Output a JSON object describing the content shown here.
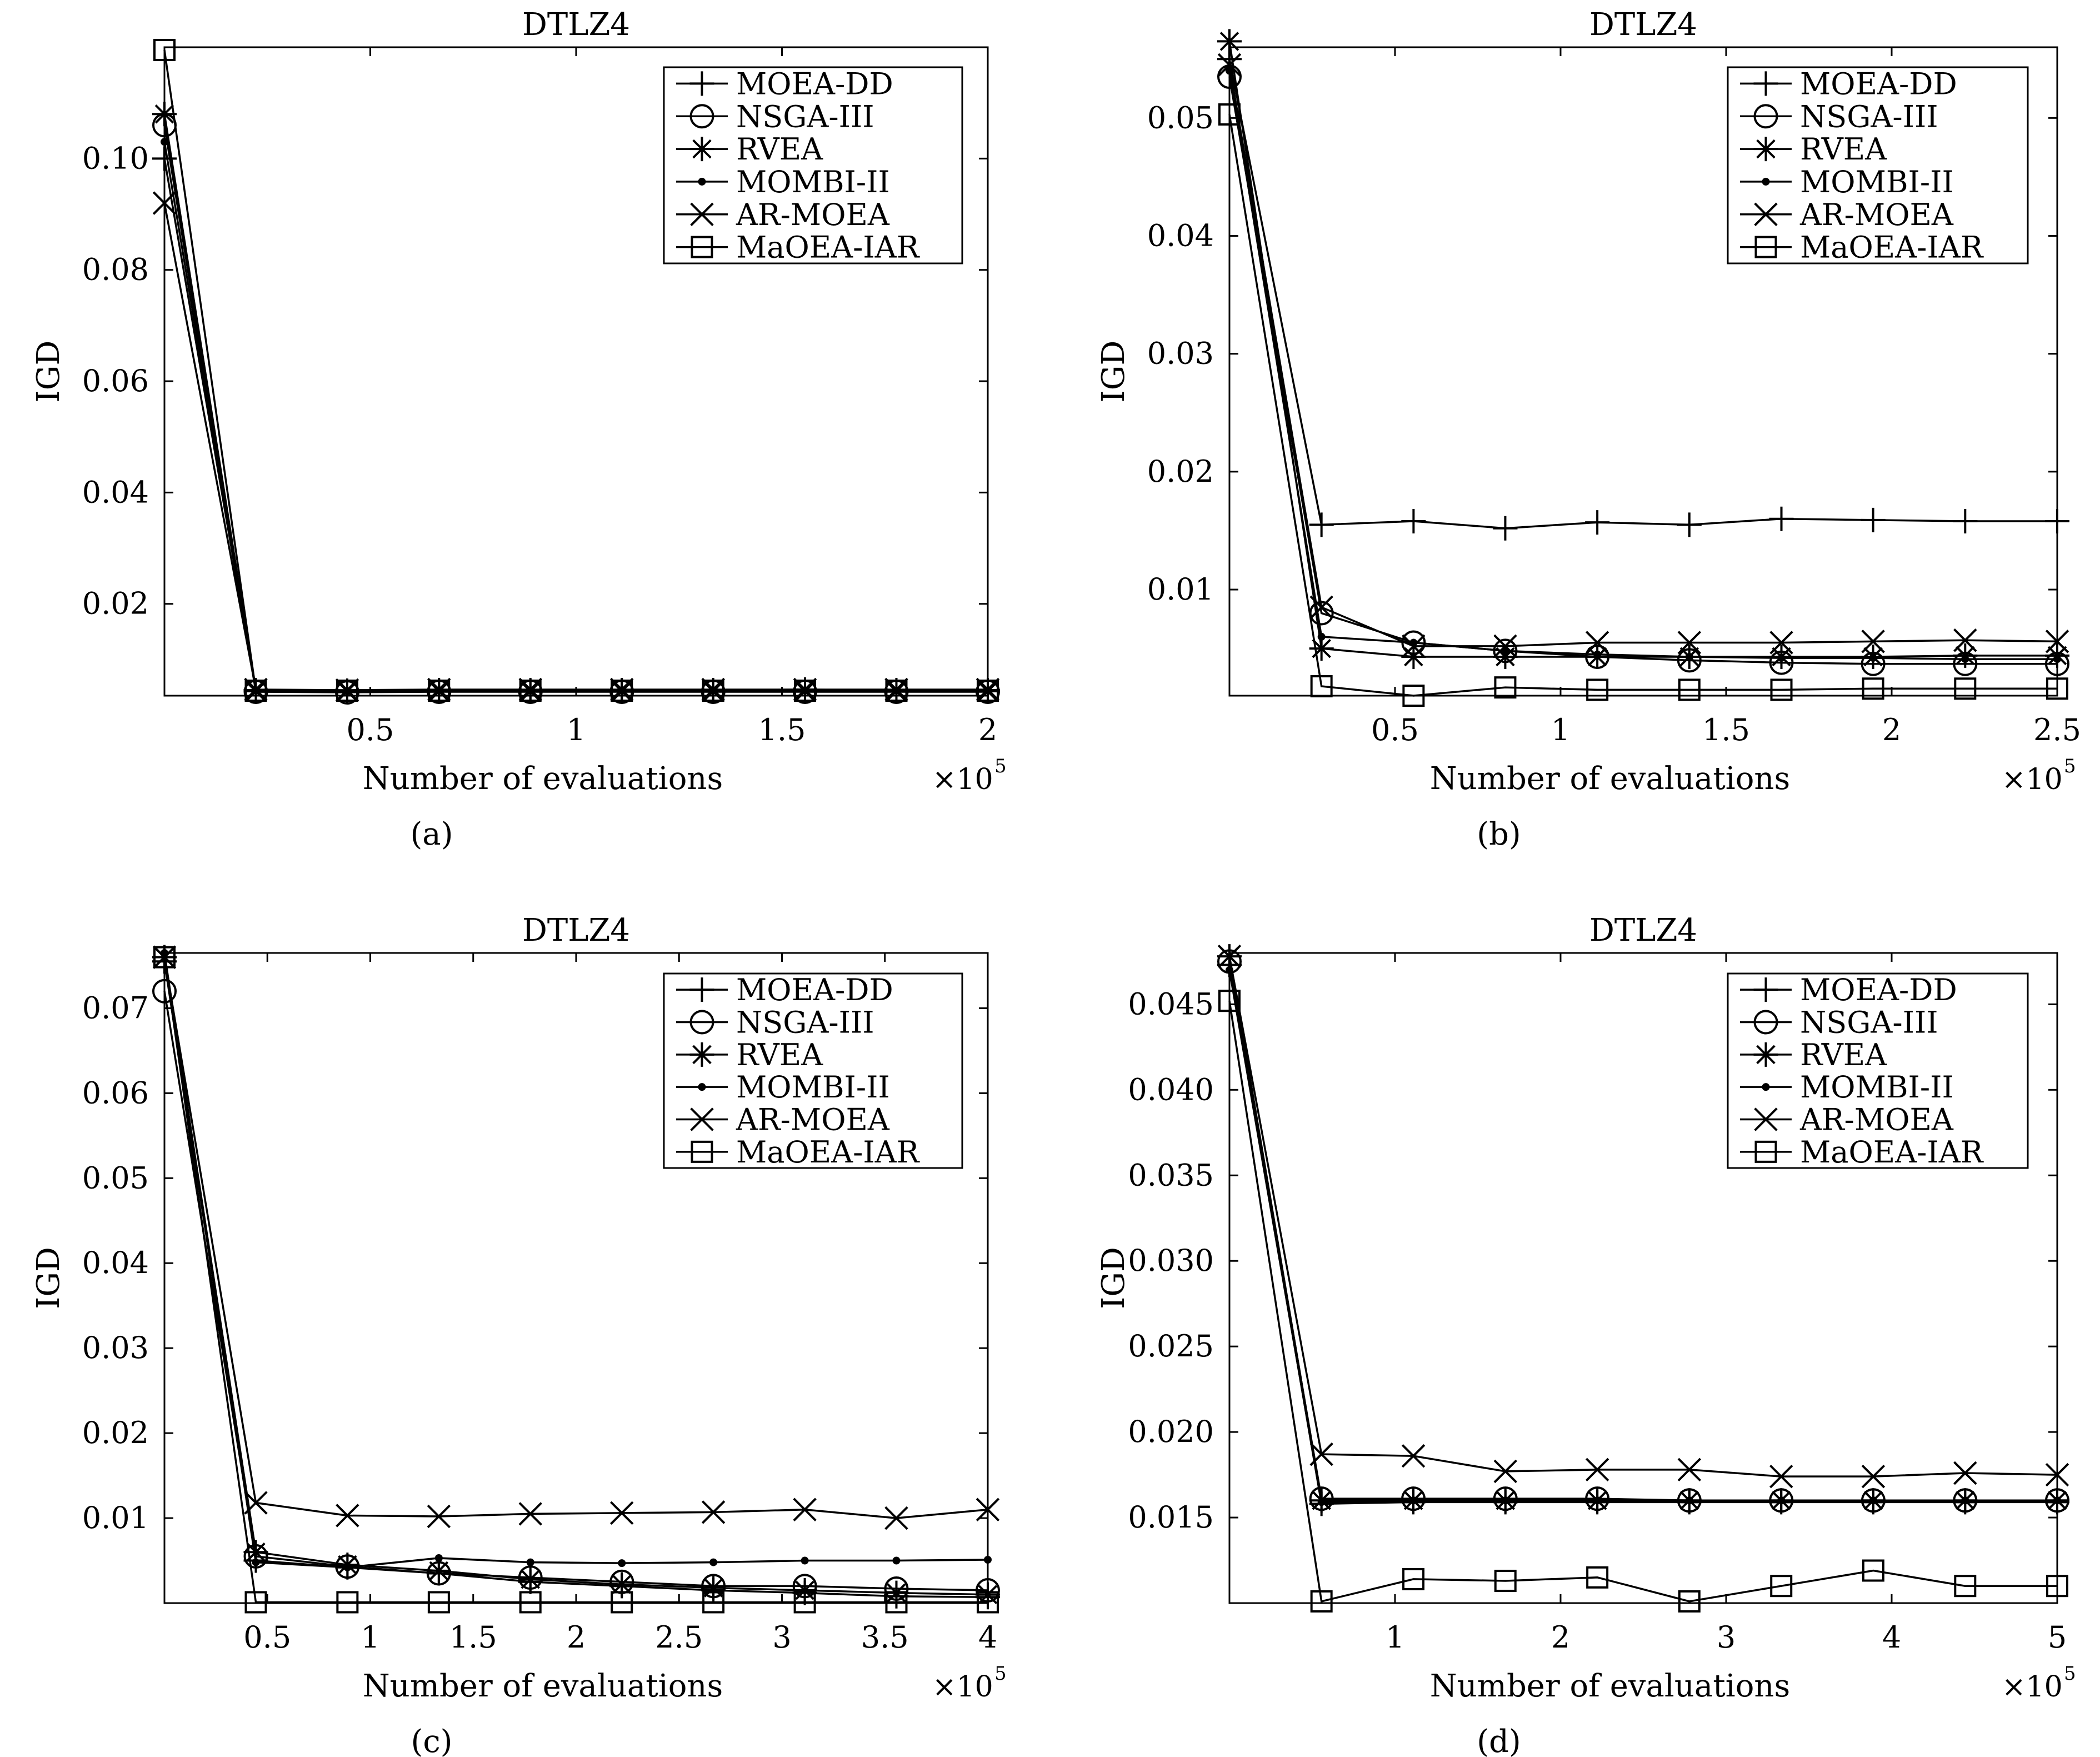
{
  "legend_labels": [
    "MOEA-DD",
    "NSGA-III",
    "RVEA",
    "MOMBI-II",
    "AR-MOEA",
    "MaOEA-IAR"
  ],
  "series_markers": [
    "plus",
    "circle",
    "asterisk",
    "dot",
    "cross",
    "square"
  ],
  "line_color": "#000000",
  "chart_data": [
    {
      "type": "line",
      "panel_label": "(a)",
      "title": "DTLZ4",
      "xlabel": "Number of evaluations",
      "ylabel": "IGD",
      "x_exponent_label": "×10",
      "x_exponent": "5",
      "xlim": [
        0,
        2
      ],
      "ylim": [
        0.0035,
        0.12
      ],
      "xticks": [
        0.5,
        1,
        1.5,
        2
      ],
      "xtick_labels": [
        "0.5",
        "1",
        "1.5",
        "2"
      ],
      "yticks": [
        0.02,
        0.04,
        0.06,
        0.08,
        0.1
      ],
      "ytick_labels": [
        "0.02",
        "0.04",
        "0.06",
        "0.08",
        "0.10"
      ],
      "legend_position": "top-right",
      "grid": false,
      "x": [
        0,
        0.222,
        0.444,
        0.667,
        0.889,
        1.111,
        1.333,
        1.556,
        1.778,
        2.0
      ],
      "series": [
        {
          "name": "MOEA-DD",
          "values": [
            0.1,
            0.0045,
            0.0044,
            0.0045,
            0.0045,
            0.0045,
            0.0045,
            0.0046,
            0.0045,
            0.0045
          ]
        },
        {
          "name": "NSGA-III",
          "values": [
            0.106,
            0.0042,
            0.0041,
            0.0042,
            0.0042,
            0.0042,
            0.0042,
            0.0042,
            0.0042,
            0.0042
          ]
        },
        {
          "name": "RVEA",
          "values": [
            0.108,
            0.0043,
            0.0043,
            0.0043,
            0.0043,
            0.0043,
            0.0043,
            0.0043,
            0.0043,
            0.0043
          ]
        },
        {
          "name": "MOMBI-II",
          "values": [
            0.103,
            0.0044,
            0.0043,
            0.0044,
            0.0044,
            0.0044,
            0.0044,
            0.0044,
            0.0044,
            0.0044
          ]
        },
        {
          "name": "AR-MOEA",
          "values": [
            0.092,
            0.0046,
            0.0045,
            0.0046,
            0.0046,
            0.0046,
            0.0046,
            0.0046,
            0.0046,
            0.0046
          ]
        },
        {
          "name": "MaOEA-IAR",
          "values": [
            0.1195,
            0.0044,
            0.0044,
            0.0044,
            0.0044,
            0.0044,
            0.0044,
            0.0044,
            0.0044,
            0.0044
          ]
        }
      ]
    },
    {
      "type": "line",
      "panel_label": "(b)",
      "title": "DTLZ4",
      "xlabel": "Number of evaluations",
      "ylabel": "IGD",
      "x_exponent_label": "×10",
      "x_exponent": "5",
      "xlim": [
        0,
        2.5
      ],
      "ylim": [
        0.001,
        0.056
      ],
      "xticks": [
        0.5,
        1,
        1.5,
        2,
        2.5
      ],
      "xtick_labels": [
        "0.5",
        "1",
        "1.5",
        "2",
        "2.5"
      ],
      "yticks": [
        0.01,
        0.02,
        0.03,
        0.04,
        0.05
      ],
      "ytick_labels": [
        "0.01",
        "0.02",
        "0.03",
        "0.04",
        "0.05"
      ],
      "legend_position": "top-right",
      "grid": false,
      "x": [
        0,
        0.278,
        0.556,
        0.833,
        1.111,
        1.389,
        1.667,
        1.944,
        2.222,
        2.5
      ],
      "series": [
        {
          "name": "MOEA-DD",
          "values": [
            0.055,
            0.0155,
            0.0158,
            0.0152,
            0.0157,
            0.0155,
            0.016,
            0.0159,
            0.0158,
            0.0158
          ]
        },
        {
          "name": "NSGA-III",
          "values": [
            0.0535,
            0.008,
            0.0055,
            0.0048,
            0.0043,
            0.004,
            0.0038,
            0.0037,
            0.0037,
            0.0037
          ]
        },
        {
          "name": "RVEA",
          "values": [
            0.0565,
            0.005,
            0.0043,
            0.0043,
            0.0043,
            0.0043,
            0.0043,
            0.0043,
            0.0044,
            0.0044
          ]
        },
        {
          "name": "MOMBI-II",
          "values": [
            0.054,
            0.006,
            0.0055,
            0.0048,
            0.0045,
            0.0043,
            0.0042,
            0.0042,
            0.0041,
            0.0041
          ]
        },
        {
          "name": "AR-MOEA",
          "values": [
            0.0545,
            0.0085,
            0.0052,
            0.0052,
            0.0055,
            0.0055,
            0.0055,
            0.0056,
            0.0057,
            0.0056
          ]
        },
        {
          "name": "MaOEA-IAR",
          "values": [
            0.0503,
            0.0018,
            0.001,
            0.0017,
            0.0015,
            0.0015,
            0.0015,
            0.0016,
            0.0016,
            0.0016
          ]
        }
      ]
    },
    {
      "type": "line",
      "panel_label": "(c)",
      "title": "DTLZ4",
      "xlabel": "Number of evaluations",
      "ylabel": "IGD",
      "x_exponent_label": "×10",
      "x_exponent": "5",
      "xlim": [
        0,
        4
      ],
      "ylim": [
        0,
        0.0765
      ],
      "xticks": [
        0.5,
        1,
        1.5,
        2,
        2.5,
        3,
        3.5,
        4
      ],
      "xtick_labels": [
        "0.5",
        "1",
        "1.5",
        "2",
        "2.5",
        "3",
        "3.5",
        "4"
      ],
      "yticks": [
        0.01,
        0.02,
        0.03,
        0.04,
        0.05,
        0.06,
        0.07
      ],
      "ytick_labels": [
        "0.01",
        "0.02",
        "0.03",
        "0.04",
        "0.05",
        "0.06",
        "0.07"
      ],
      "legend_position": "top-right",
      "grid": false,
      "x": [
        0,
        0.444,
        0.889,
        1.333,
        1.778,
        2.222,
        2.667,
        3.111,
        3.556,
        4.0
      ],
      "series": [
        {
          "name": "MOEA-DD",
          "values": [
            0.0755,
            0.005,
            0.0042,
            0.0035,
            0.0025,
            0.002,
            0.0015,
            0.0012,
            0.0008,
            0.0007
          ]
        },
        {
          "name": "NSGA-III",
          "values": [
            0.072,
            0.0055,
            0.0043,
            0.0035,
            0.003,
            0.0025,
            0.002,
            0.002,
            0.0017,
            0.0015
          ]
        },
        {
          "name": "RVEA",
          "values": [
            0.076,
            0.006,
            0.0045,
            0.0038,
            0.0028,
            0.0022,
            0.0018,
            0.0015,
            0.0012,
            0.001
          ]
        },
        {
          "name": "MOMBI-II",
          "values": [
            0.0765,
            0.0048,
            0.0042,
            0.0053,
            0.0048,
            0.0047,
            0.0048,
            0.005,
            0.005,
            0.0051
          ]
        },
        {
          "name": "AR-MOEA",
          "values": [
            0.076,
            0.0118,
            0.0103,
            0.0102,
            0.0105,
            0.0106,
            0.0107,
            0.011,
            0.01,
            0.011
          ]
        },
        {
          "name": "MaOEA-IAR",
          "values": [
            0.076,
            0.0001,
            0.0001,
            0.0001,
            0.0001,
            0.0001,
            0.0001,
            0.0001,
            0.0001,
            0.0001
          ]
        }
      ]
    },
    {
      "type": "line",
      "panel_label": "(d)",
      "title": "DTLZ4",
      "xlabel": "Number of evaluations",
      "ylabel": "IGD",
      "x_exponent_label": "×10",
      "x_exponent": "5",
      "xlim": [
        0,
        5
      ],
      "ylim": [
        0.01,
        0.048
      ],
      "xticks": [
        1,
        2,
        3,
        4,
        5
      ],
      "xtick_labels": [
        "1",
        "2",
        "3",
        "4",
        "5"
      ],
      "yticks": [
        0.015,
        0.02,
        0.025,
        0.03,
        0.035,
        0.04,
        0.045
      ],
      "ytick_labels": [
        "0.015",
        "0.020",
        "0.025",
        "0.030",
        "0.035",
        "0.040",
        "0.045"
      ],
      "legend_position": "top-right",
      "grid": false,
      "x": [
        0,
        0.556,
        1.111,
        1.667,
        2.222,
        2.778,
        3.333,
        3.889,
        4.444,
        5.0
      ],
      "series": [
        {
          "name": "MOEA-DD",
          "values": [
            0.0473,
            0.0158,
            0.0159,
            0.0159,
            0.0159,
            0.0159,
            0.0159,
            0.0159,
            0.0159,
            0.0159
          ]
        },
        {
          "name": "NSGA-III",
          "values": [
            0.0475,
            0.0161,
            0.0161,
            0.0161,
            0.0161,
            0.016,
            0.016,
            0.016,
            0.016,
            0.016
          ]
        },
        {
          "name": "RVEA",
          "values": [
            0.0478,
            0.016,
            0.016,
            0.016,
            0.016,
            0.016,
            0.016,
            0.016,
            0.016,
            0.016
          ]
        },
        {
          "name": "MOMBI-II",
          "values": [
            0.047,
            0.0159,
            0.016,
            0.016,
            0.016,
            0.016,
            0.016,
            0.016,
            0.016,
            0.016
          ]
        },
        {
          "name": "AR-MOEA",
          "values": [
            0.0478,
            0.0187,
            0.0186,
            0.0177,
            0.0178,
            0.0178,
            0.0174,
            0.0174,
            0.0176,
            0.0175
          ]
        },
        {
          "name": "MaOEA-IAR",
          "values": [
            0.0452,
            0.0101,
            0.0114,
            0.0113,
            0.0115,
            0.0101,
            0.011,
            0.0119,
            0.011,
            0.011
          ]
        }
      ]
    }
  ]
}
